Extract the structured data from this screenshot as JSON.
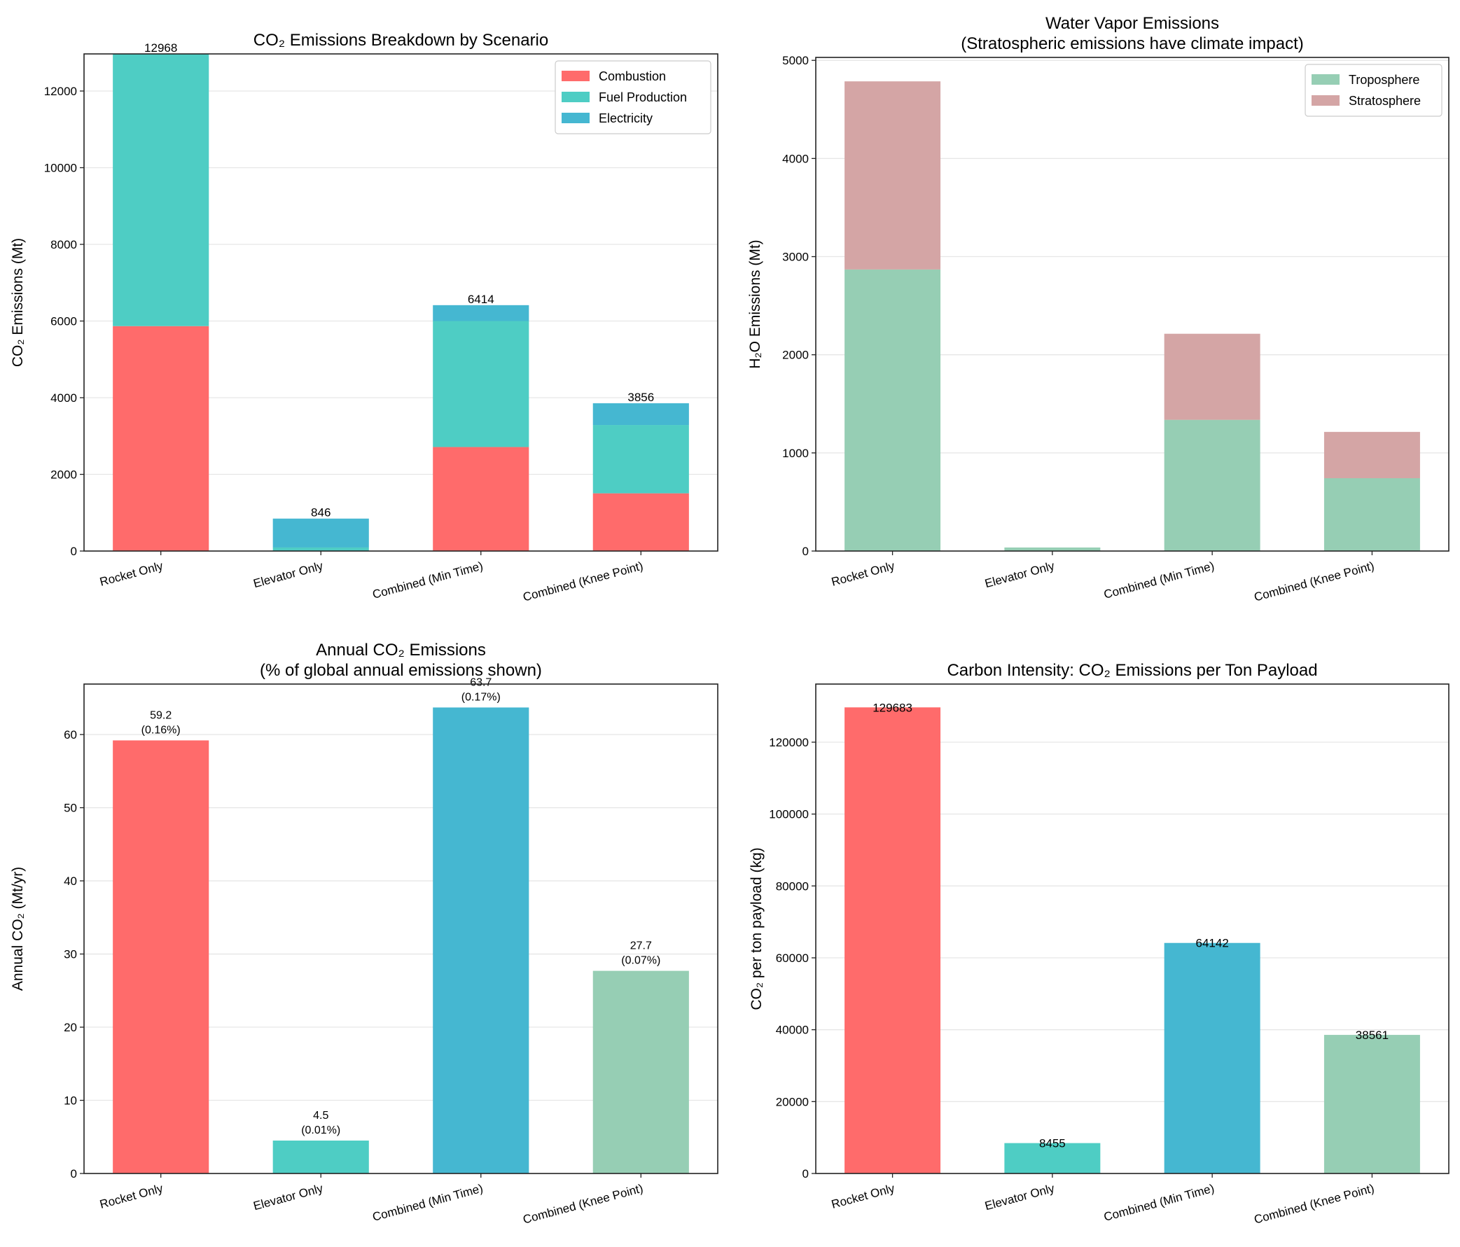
{
  "colors": {
    "combustion": "#ff6b6b",
    "fuel": "#4ecdc4",
    "electricity": "#45b7d1",
    "troposphere": "#96ceb4",
    "stratosphere": "#d4a5a5"
  },
  "chart_data": [
    {
      "type": "bar",
      "stacked": true,
      "title": "CO₂ Emissions Breakdown by Scenario",
      "xlabel": "",
      "ylabel": "CO₂ Emissions (Mt)",
      "categories": [
        "Rocket Only",
        "Elevator Only",
        "Combined (Min Time)",
        "Combined (Knee Point)"
      ],
      "series": [
        {
          "name": "Combustion",
          "color_key": "combustion",
          "values": [
            5867,
            0,
            2713,
            1505
          ]
        },
        {
          "name": "Fuel Production",
          "color_key": "fuel",
          "values": [
            7101,
            92,
            3287,
            1782
          ]
        },
        {
          "name": "Electricity",
          "color_key": "electricity",
          "values": [
            0,
            754,
            414,
            569
          ]
        }
      ],
      "totals": [
        "12968",
        "846",
        "6414",
        "3856"
      ],
      "yticks": [
        0,
        2000,
        4000,
        6000,
        8000,
        10000,
        12000
      ],
      "ylim": [
        0,
        12968
      ],
      "legend": "top-right",
      "grid": true
    },
    {
      "type": "bar",
      "stacked": true,
      "title": "Water Vapor Emissions",
      "subtitle": "(Stratospheric emissions have climate impact)",
      "xlabel": "",
      "ylabel": "H₂O Emissions (Mt)",
      "categories": [
        "Rocket Only",
        "Elevator Only",
        "Combined (Min Time)",
        "Combined (Knee Point)"
      ],
      "series": [
        {
          "name": "Troposphere",
          "color_key": "troposphere",
          "values": [
            2869,
            36,
            1337,
            742
          ]
        },
        {
          "name": "Stratosphere",
          "color_key": "stratosphere",
          "values": [
            1917,
            0,
            877,
            472
          ]
        }
      ],
      "yticks": [
        0,
        1000,
        2000,
        3000,
        4000,
        5000
      ],
      "ylim": [
        0,
        5030
      ],
      "legend": "top-right",
      "grid": true
    },
    {
      "type": "bar",
      "title": "Annual CO₂ Emissions",
      "subtitle": "(% of global annual emissions shown)",
      "xlabel": "",
      "ylabel": "Annual CO₂ (Mt/yr)",
      "categories": [
        "Rocket Only",
        "Elevator Only",
        "Combined (Min Time)",
        "Combined (Knee Point)"
      ],
      "values": [
        59.2,
        4.5,
        63.7,
        27.7
      ],
      "labels": [
        "59.2",
        "4.5",
        "63.7",
        "27.7"
      ],
      "percent_labels": [
        "(0.16%)",
        "(0.01%)",
        "(0.17%)",
        "(0.07%)"
      ],
      "bar_color_keys": [
        "combustion",
        "fuel",
        "electricity",
        "troposphere"
      ],
      "yticks": [
        0,
        10,
        20,
        30,
        40,
        50,
        60
      ],
      "ylim": [
        0,
        66.9
      ],
      "grid": true
    },
    {
      "type": "bar",
      "title": "Carbon Intensity: CO₂ Emissions per Ton Payload",
      "xlabel": "",
      "ylabel": "CO₂ per ton payload (kg)",
      "categories": [
        "Rocket Only",
        "Elevator Only",
        "Combined (Min Time)",
        "Combined (Knee Point)"
      ],
      "values": [
        129683,
        8455,
        64142,
        38561
      ],
      "labels": [
        "129683",
        "8455",
        "64142",
        "38561"
      ],
      "bar_color_keys": [
        "combustion",
        "fuel",
        "electricity",
        "troposphere"
      ],
      "yticks": [
        0,
        20000,
        40000,
        60000,
        80000,
        100000,
        120000
      ],
      "ylim": [
        0,
        136167
      ],
      "grid": true
    }
  ]
}
